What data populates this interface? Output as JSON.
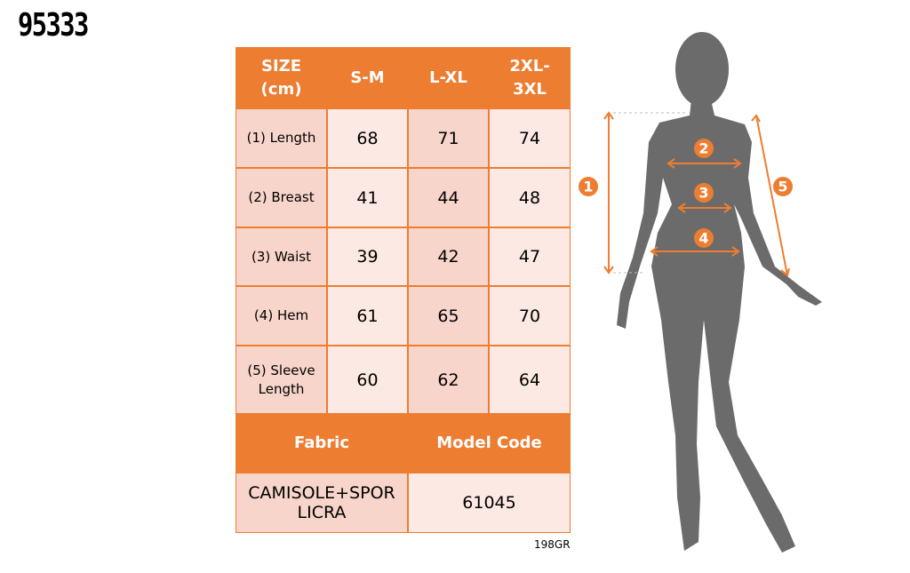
{
  "title": "95333",
  "table": {
    "header": [
      "SIZE (cm)",
      "S-M",
      "L-XL",
      "2XL-3XL"
    ],
    "rows": [
      [
        "(1) Length",
        "68",
        "71",
        "74"
      ],
      [
        "(2) Breast",
        "41",
        "44",
        "48"
      ],
      [
        "(3) Waist",
        "39",
        "42",
        "47"
      ],
      [
        "(4) Hem",
        "61",
        "65",
        "70"
      ],
      [
        "(5) Sleeve Length",
        "60",
        "62",
        "64"
      ]
    ],
    "footer_header": [
      "Fabric",
      "Model Code"
    ],
    "footer_row": [
      "CAMISOLE+SPOR LICRA",
      "61045"
    ],
    "note": "198GR"
  },
  "figure": {
    "markers": [
      "1",
      "2",
      "3",
      "4",
      "5"
    ]
  }
}
